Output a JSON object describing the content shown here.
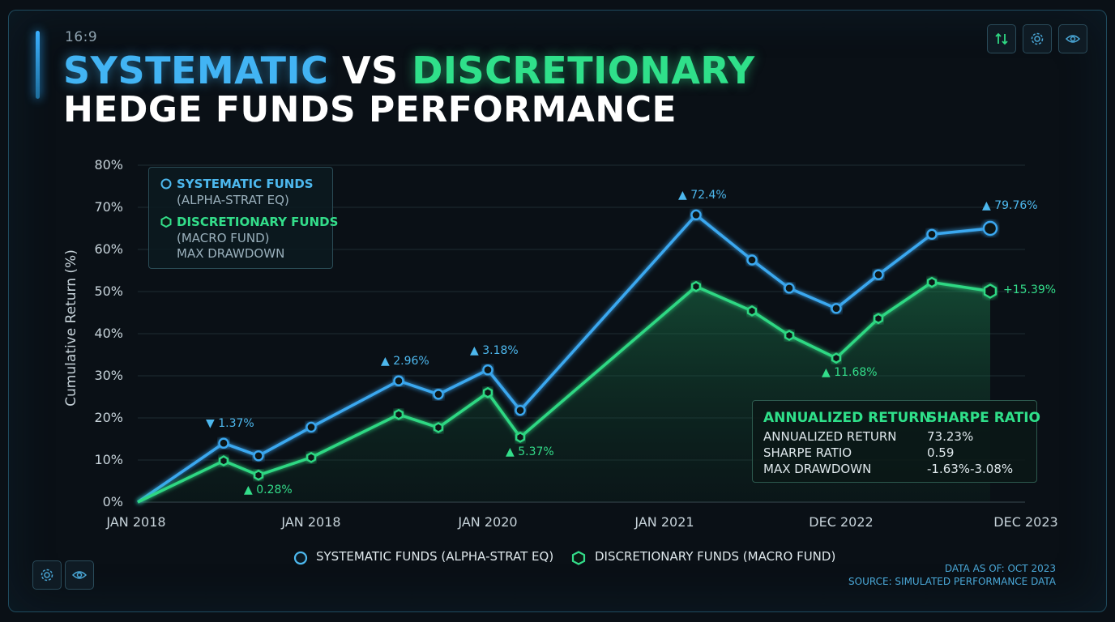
{
  "header": {
    "aspect": "16:9",
    "title_part1": "SYSTEMATIC",
    "title_part2": "VS",
    "title_part3": "DISCRETIONARY",
    "title_line2": "HEDGE FUNDS PERFORMANCE"
  },
  "toolbar": {
    "icons": [
      "sort-arrows-icon",
      "gear-icon",
      "eye-icon"
    ]
  },
  "bottom_toolbar": {
    "icons": [
      "gear-icon",
      "eye-icon"
    ]
  },
  "legend_box": {
    "sys_title": "SYSTEMATIC FUNDS",
    "sys_sub": "(ALPHA-STRAT EQ)",
    "dis_title": "DISCRETIONARY FUNDS",
    "dis_sub": "(MACRO FUND)",
    "extra": "MAX DRAWDOWN"
  },
  "stats": {
    "col1_header": "ANNUALIZED RETURN",
    "col2_header": "SHARPE RATIO",
    "rows": [
      {
        "label": "ANNUALIZED RETURN",
        "value": "73.23%"
      },
      {
        "label": "SHARPE RATIO",
        "value": "0.59"
      },
      {
        "label": "MAX DRAWDOWN",
        "value": "-1.63%-3.08%"
      }
    ]
  },
  "bottom_legend": {
    "sys": "SYSTEMATIC FUNDS (ALPHA-STRAT EQ)",
    "dis": "DISCRETIONARY FUNDS (MACRO FUND)"
  },
  "footer": {
    "line1": "DATA AS OF: OCT 2023",
    "line2": "SOURCE: SIMULATED PERFORMANCE DATA"
  },
  "colors": {
    "systematic": "#3aa8f0",
    "discretionary": "#2fd883",
    "background": "#0a1016"
  },
  "chart_data": {
    "type": "line",
    "title": "SYSTEMATIC VS DISCRETIONARY HEDGE FUNDS PERFORMANCE",
    "xlabel": "",
    "ylabel": "Cumulative Return (%)",
    "ylim": [
      0,
      80
    ],
    "yticks": [
      "0%",
      "10%",
      "20%",
      "30%",
      "40%",
      "50%",
      "60%",
      "70%",
      "80%"
    ],
    "xticks": [
      "JAN 2018",
      "JAN 2018",
      "JAN 2020",
      "JAN 2021",
      "DEC 2022",
      "DEC 2023"
    ],
    "grid": true,
    "series": [
      {
        "name": "SYSTEMATIC FUNDS (ALPHA-STRAT EQ)",
        "values": [
          0,
          14,
          11,
          17.8,
          28.8,
          25.6,
          31.4,
          21.8,
          68.2,
          57.5,
          50.8,
          46,
          54,
          63.6,
          65
        ]
      },
      {
        "name": "DISCRETIONARY FUNDS (MACRO FUND)",
        "values": [
          0,
          9.8,
          6.4,
          10.6,
          20.8,
          17.7,
          26,
          15.4,
          51.2,
          45.4,
          39.6,
          34.2,
          43.6,
          52.2,
          50.1
        ]
      }
    ],
    "annotations": [
      {
        "text": "▼ 1.37%",
        "series": 0,
        "index": 1,
        "color": "#4db8ee"
      },
      {
        "text": "▲ 0.28%",
        "series": 1,
        "index": 2,
        "color": "#33dd8a"
      },
      {
        "text": "▲ 2.96%",
        "series": 0,
        "index": 4,
        "color": "#4db8ee"
      },
      {
        "text": "▲ 3.18%",
        "series": 0,
        "index": 6,
        "color": "#4db8ee"
      },
      {
        "text": "▲ 5.37%",
        "series": 1,
        "index": 7,
        "color": "#33dd8a"
      },
      {
        "text": "▲ 72.4%",
        "series": 0,
        "index": 8,
        "color": "#4db8ee"
      },
      {
        "text": "▲ 11.68%",
        "series": 1,
        "index": 11,
        "color": "#33dd8a"
      },
      {
        "text": "▲ 79.76%",
        "series": 0,
        "index": 14,
        "color": "#4db8ee"
      },
      {
        "text": "+15.39%",
        "series": 1,
        "index": 14,
        "color": "#33dd8a"
      }
    ]
  }
}
